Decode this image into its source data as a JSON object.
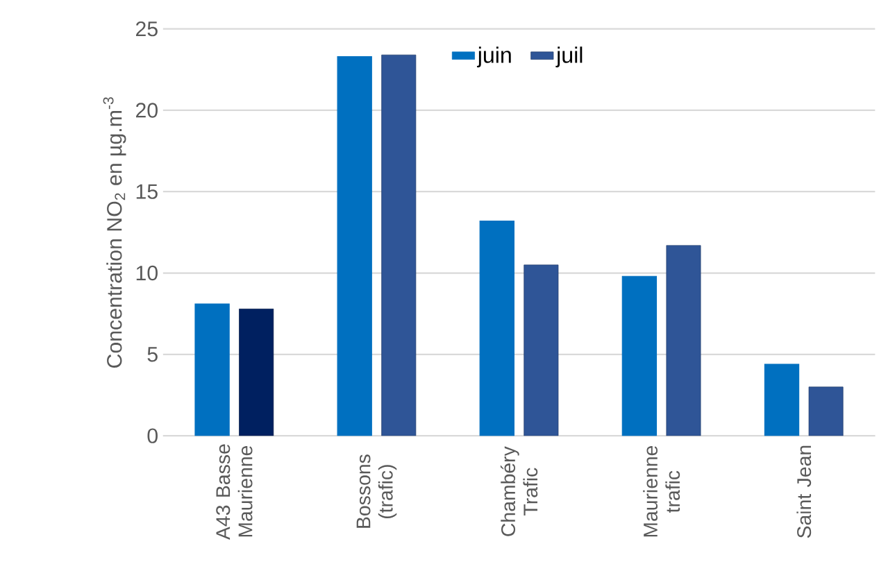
{
  "chart_data": {
    "type": "bar",
    "ylabel": "Concentration NO$_{2}$ en µg.m$^{-3}$",
    "categories": [
      "A43 Basse Maurienne",
      "Bossons (trafic)",
      "Chambéry Trafic",
      "Maurienne trafic",
      "Saint Jean"
    ],
    "series": [
      {
        "name": "juin",
        "color": "#0070c0",
        "values": [
          8.1,
          23.3,
          13.2,
          9.8,
          4.4
        ]
      },
      {
        "name": "juil",
        "color": "#2f5597",
        "colors": [
          "#002060",
          "#2f5597",
          "#2f5597",
          "#2f5597",
          "#2f5597"
        ],
        "values": [
          7.8,
          23.4,
          10.5,
          11.7,
          3.0
        ]
      }
    ],
    "ylim": [
      0,
      25
    ],
    "yticks": [
      0,
      5,
      10,
      15,
      20,
      25
    ],
    "grid": "y",
    "legend": "top"
  }
}
